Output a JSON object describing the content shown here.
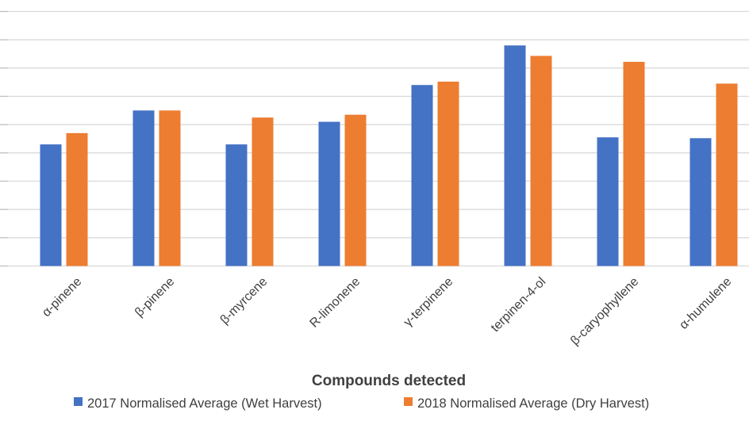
{
  "chart_data": {
    "type": "bar",
    "title": "",
    "xlabel": "Compounds detected",
    "ylabel": "",
    "categories": [
      "α-pinene",
      "β-pinene",
      "β-myrcene",
      "R-limonene",
      "γ-terpinene",
      "terpinen-4-ol",
      "β-caryophyllene",
      "α-humulene"
    ],
    "series": [
      {
        "name": "2017 Normalised Average (Wet Harvest)",
        "color": "#4472c4",
        "values": [
          0.43,
          0.55,
          0.43,
          0.51,
          0.64,
          0.78,
          0.455,
          0.452
        ]
      },
      {
        "name": "2018 Normalised Average (Dry Harvest)",
        "color": "#ed7d31",
        "values": [
          0.47,
          0.55,
          0.525,
          0.535,
          0.652,
          0.743,
          0.722,
          0.645
        ]
      }
    ],
    "ylim": [
      0,
      0.9
    ],
    "ytick_step": 0.1,
    "grid": true,
    "legend_position": "bottom"
  }
}
